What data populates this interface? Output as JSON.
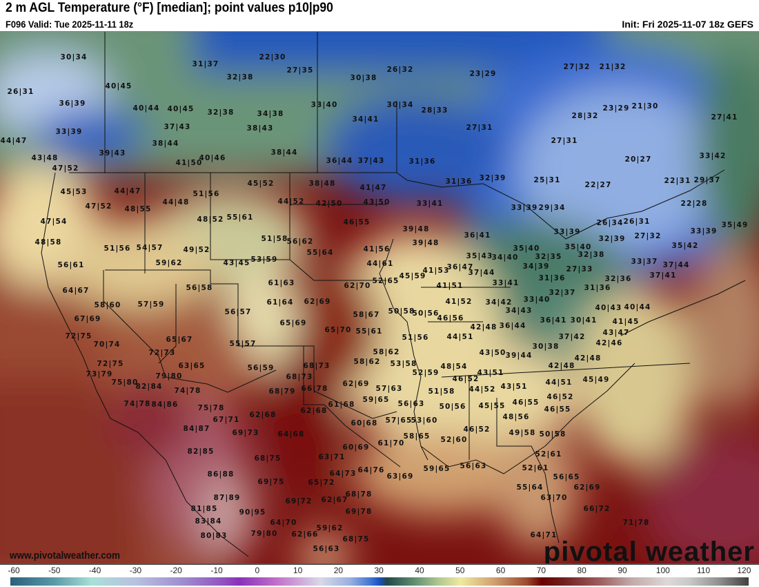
{
  "header": {
    "title": "2 m AGL Temperature (°F) [median]; point values p10|p90",
    "valid": "F096 Valid: Tue 2025-11-11 18z",
    "init": "Init: Fri 2025-11-07 18z GEFS"
  },
  "map": {
    "watermark_url": "www.pivotalweather.com",
    "logo": "pivotal weather",
    "points": [
      "30|34",
      "31|37",
      "22|30",
      "27|35",
      "32|38",
      "30|38",
      "26|32",
      "23|29",
      "27|32",
      "21|32",
      "26|31",
      "40|45",
      "36|39",
      "40|44",
      "40|45",
      "32|38",
      "34|38",
      "33|40",
      "30|34",
      "28|33",
      "23|29",
      "21|30",
      "34|41",
      "28|32",
      "27|41",
      "37|43",
      "38|43",
      "27|31",
      "33|39",
      "44|47",
      "38|44",
      "27|31",
      "39|43",
      "38|44",
      "20|27",
      "43|48",
      "41|50",
      "40|46",
      "36|44",
      "37|43",
      "31|36",
      "33|42",
      "47|52",
      "25|31",
      "22|27",
      "31|36",
      "32|39",
      "22|31",
      "29|37",
      "45|53",
      "44|47",
      "45|52",
      "38|48",
      "41|47",
      "51|56",
      "44|48",
      "44|52",
      "42|50",
      "43|50",
      "33|41",
      "22|28",
      "47|52",
      "48|55",
      "29|34",
      "33|39",
      "48|52",
      "55|61",
      "46|55",
      "26|34",
      "26|31",
      "35|49",
      "47|54",
      "39|48",
      "33|39",
      "33|39",
      "36|41",
      "27|32",
      "32|39",
      "51|58",
      "56|62",
      "48|58",
      "39|48",
      "35|40",
      "35|40",
      "35|42",
      "51|56",
      "54|57",
      "49|52",
      "55|64",
      "41|56",
      "35|43",
      "34|40",
      "32|35",
      "32|38",
      "56|61",
      "59|62",
      "43|45",
      "53|59",
      "44|61",
      "36|47",
      "33|37",
      "37|44",
      "41|53",
      "45|59",
      "52|65",
      "37|44",
      "34|39",
      "27|33",
      "37|41",
      "32|36",
      "31|36",
      "61|63",
      "56|58",
      "62|70",
      "33|41",
      "41|51",
      "31|36",
      "32|37",
      "64|67",
      "58|60",
      "57|59",
      "61|64",
      "62|69",
      "34|42",
      "33|40",
      "41|52",
      "40|43",
      "40|44",
      "34|43",
      "56|57",
      "50|58",
      "50|56",
      "58|67",
      "46|56",
      "36|41",
      "30|41",
      "67|69",
      "65|69",
      "42|48",
      "36|44",
      "43|47",
      "65|70",
      "55|61",
      "41|45",
      "72|75",
      "51|56",
      "44|51",
      "37|42",
      "42|46",
      "65|67",
      "70|74",
      "55|57",
      "30|38",
      "58|62",
      "72|73",
      "43|50",
      "39|44",
      "42|48",
      "42|48",
      "72|75",
      "63|65",
      "56|59",
      "68|73",
      "58|62",
      "53|58",
      "48|54",
      "43|51",
      "73|79",
      "79|80",
      "68|73",
      "52|59",
      "44|51",
      "45|49",
      "75|80",
      "82|84",
      "62|69",
      "46|52",
      "74|78",
      "68|79",
      "66|78",
      "57|63",
      "51|58",
      "44|52",
      "43|51",
      "46|52",
      "59|65",
      "61|68",
      "74|78",
      "84|86",
      "75|78",
      "46|55",
      "56|63",
      "50|56",
      "45|55",
      "62|68",
      "46|55",
      "67|71",
      "62|68",
      "60|68",
      "57|65",
      "53|60",
      "48|56",
      "84|87",
      "64|68",
      "69|73",
      "46|52",
      "49|58",
      "50|58",
      "58|65",
      "52|60",
      "60|69",
      "61|70",
      "82|85",
      "63|71",
      "52|61",
      "68|75",
      "64|73",
      "64|76",
      "63|69",
      "59|65",
      "56|63",
      "52|61",
      "56|65",
      "86|88",
      "69|75",
      "65|72",
      "55|64",
      "62|69",
      "68|78",
      "87|89",
      "69|72",
      "62|67",
      "63|70",
      "69|78",
      "81|85",
      "90|95",
      "66|72",
      "83|84",
      "64|70",
      "59|62",
      "71|78",
      "62|66",
      "68|75",
      "80|83",
      "79|80",
      "56|63",
      "64|71"
    ]
  },
  "colorbar": {
    "unit": "°F",
    "ticks": [
      "-60",
      "-50",
      "-40",
      "-30",
      "-20",
      "-10",
      "0",
      "10",
      "20",
      "30",
      "40",
      "50",
      "60",
      "70",
      "80",
      "90",
      "100",
      "110",
      "120"
    ]
  }
}
